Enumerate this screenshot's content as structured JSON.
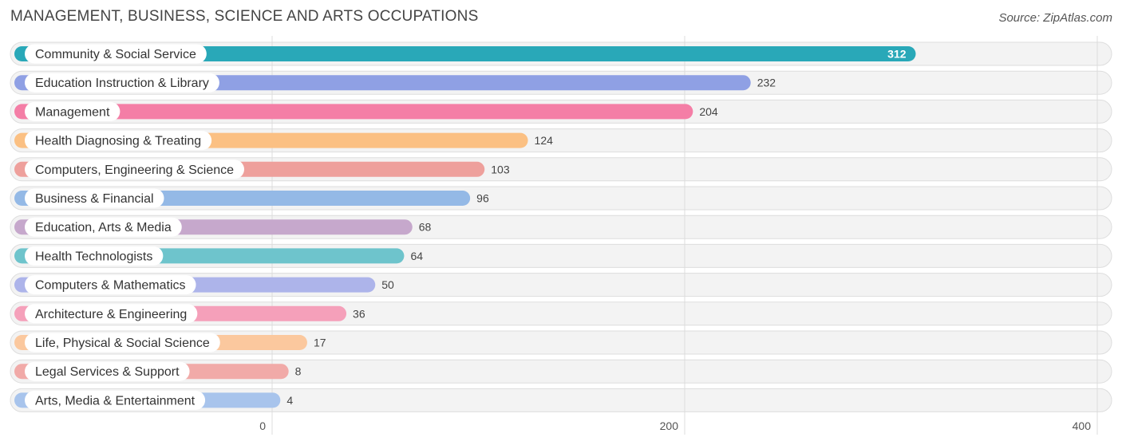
{
  "header": {
    "title": "MANAGEMENT, BUSINESS, SCIENCE AND ARTS OCCUPATIONS",
    "source": "Source: ZipAtlas.com"
  },
  "chart_data": {
    "type": "bar",
    "orientation": "horizontal",
    "title": "MANAGEMENT, BUSINESS, SCIENCE AND ARTS OCCUPATIONS",
    "xlim": [
      0,
      400
    ],
    "x_ticks": [
      0,
      200,
      400
    ],
    "x_tick_labels": [
      "0",
      "200",
      "400"
    ],
    "grid": true,
    "categories": [
      "Community & Social Service",
      "Education Instruction & Library",
      "Management",
      "Health Diagnosing & Treating",
      "Computers, Engineering & Science",
      "Business & Financial",
      "Education, Arts & Media",
      "Health Technologists",
      "Computers & Mathematics",
      "Architecture & Engineering",
      "Life, Physical & Social Science",
      "Legal Services & Support",
      "Arts, Media & Entertainment"
    ],
    "values": [
      312,
      232,
      204,
      124,
      103,
      96,
      68,
      64,
      50,
      36,
      17,
      8,
      4
    ],
    "value_labels": [
      "312",
      "232",
      "204",
      "124",
      "103",
      "96",
      "68",
      "64",
      "50",
      "36",
      "17",
      "8",
      "4"
    ],
    "colors": [
      "#29a8b8",
      "#8fa0e4",
      "#f47ea6",
      "#fbc083",
      "#eea09c",
      "#94b9e6",
      "#c6a8cc",
      "#6ec4cc",
      "#adb4ea",
      "#f5a0ba",
      "#fbc89e",
      "#f1aaa8",
      "#a8c4ec"
    ]
  }
}
